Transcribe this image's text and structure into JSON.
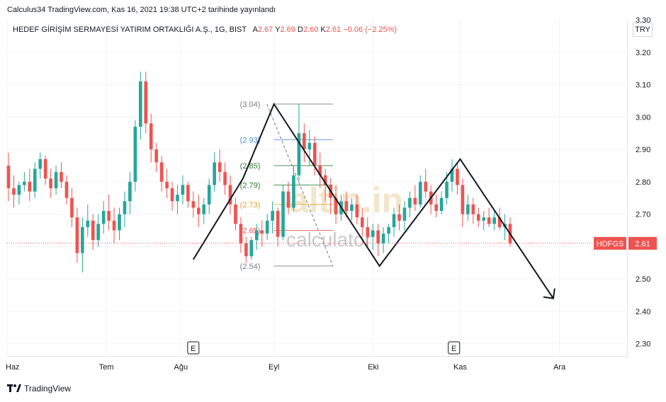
{
  "header": {
    "published": "Calculus34 TradingView.com, Kas 16, 2021 19:38 UTC+2 tarihinde yayınlandı"
  },
  "legend": {
    "symbol": "HEDEF GİRİŞİM SERMAYESİ YATIRIM ORTAKLIĞI A.Ş., 1G, BIST",
    "open_label": "A",
    "open_value": "2.67",
    "high_label": "Y",
    "high_value": "2.69",
    "low_label": "D",
    "low_value": "2.60",
    "close_label": "K",
    "close_value": "2.61",
    "change": "−0.06 (−2.25%)"
  },
  "currency": "TRY",
  "ticker_badge": {
    "name": "HDFGS",
    "price": "2.61"
  },
  "watermark": {
    "brand": "altin.in",
    "sub": "calculator"
  },
  "footer": {
    "brand": "TradingView"
  },
  "colors": {
    "up": "#26a69a",
    "down": "#ef5350",
    "pattern": "#131722",
    "fib_gray": "#787b86",
    "fib_blue": "#4a90d9",
    "fib_green": "#2e7d32"
  },
  "chart_data": {
    "type": "candlestick",
    "y_ticks": [
      "3.30",
      "3.20",
      "3.10",
      "3.00",
      "2.90",
      "2.80",
      "2.70",
      "2.60",
      "2.50",
      "2.40",
      "2.30"
    ],
    "x_ticks": [
      "Haz",
      "Tem",
      "Ağu",
      "Eyl",
      "Eki",
      "Kas",
      "Ara"
    ],
    "ylim": [
      2.26,
      3.3
    ],
    "last_price": 2.61,
    "candles": [
      [
        2.85,
        2.89,
        2.74,
        2.78
      ],
      [
        2.78,
        2.82,
        2.72,
        2.76
      ],
      [
        2.76,
        2.8,
        2.73,
        2.79
      ],
      [
        2.79,
        2.83,
        2.77,
        2.8
      ],
      [
        2.8,
        2.84,
        2.74,
        2.77
      ],
      [
        2.77,
        2.86,
        2.75,
        2.84
      ],
      [
        2.84,
        2.89,
        2.81,
        2.87
      ],
      [
        2.87,
        2.88,
        2.79,
        2.81
      ],
      [
        2.81,
        2.84,
        2.75,
        2.78
      ],
      [
        2.78,
        2.85,
        2.76,
        2.83
      ],
      [
        2.83,
        2.86,
        2.78,
        2.8
      ],
      [
        2.8,
        2.82,
        2.73,
        2.75
      ],
      [
        2.75,
        2.78,
        2.66,
        2.69
      ],
      [
        2.69,
        2.72,
        2.55,
        2.58
      ],
      [
        2.58,
        2.69,
        2.52,
        2.66
      ],
      [
        2.66,
        2.73,
        2.63,
        2.68
      ],
      [
        2.68,
        2.7,
        2.59,
        2.62
      ],
      [
        2.62,
        2.7,
        2.6,
        2.67
      ],
      [
        2.67,
        2.74,
        2.64,
        2.71
      ],
      [
        2.71,
        2.76,
        2.65,
        2.68
      ],
      [
        2.68,
        2.72,
        2.61,
        2.65
      ],
      [
        2.65,
        2.72,
        2.62,
        2.7
      ],
      [
        2.7,
        2.77,
        2.66,
        2.74
      ],
      [
        2.74,
        2.83,
        2.7,
        2.8
      ],
      [
        2.8,
        2.99,
        2.77,
        2.97
      ],
      [
        2.97,
        3.14,
        2.93,
        3.11
      ],
      [
        3.11,
        3.14,
        2.95,
        2.98
      ],
      [
        2.98,
        3.01,
        2.86,
        2.9
      ],
      [
        2.9,
        2.92,
        2.83,
        2.86
      ],
      [
        2.86,
        2.88,
        2.77,
        2.8
      ],
      [
        2.8,
        2.84,
        2.75,
        2.78
      ],
      [
        2.78,
        2.8,
        2.71,
        2.74
      ],
      [
        2.74,
        2.79,
        2.7,
        2.76
      ],
      [
        2.76,
        2.82,
        2.73,
        2.79
      ],
      [
        2.79,
        2.8,
        2.72,
        2.74
      ],
      [
        2.74,
        2.77,
        2.69,
        2.72
      ],
      [
        2.72,
        2.76,
        2.66,
        2.7
      ],
      [
        2.7,
        2.75,
        2.67,
        2.73
      ],
      [
        2.73,
        2.81,
        2.7,
        2.79
      ],
      [
        2.79,
        2.89,
        2.77,
        2.86
      ],
      [
        2.86,
        2.9,
        2.8,
        2.83
      ],
      [
        2.83,
        2.86,
        2.76,
        2.79
      ],
      [
        2.79,
        2.82,
        2.7,
        2.73
      ],
      [
        2.73,
        2.75,
        2.65,
        2.67
      ],
      [
        2.67,
        2.69,
        2.58,
        2.61
      ],
      [
        2.61,
        2.63,
        2.55,
        2.57
      ],
      [
        2.57,
        2.63,
        2.56,
        2.62
      ],
      [
        2.62,
        2.67,
        2.59,
        2.65
      ],
      [
        2.65,
        2.68,
        2.6,
        2.64
      ],
      [
        2.64,
        2.7,
        2.62,
        2.68
      ],
      [
        2.68,
        2.74,
        2.64,
        2.71
      ],
      [
        2.71,
        2.72,
        2.6,
        2.63
      ],
      [
        2.63,
        2.79,
        2.62,
        2.77
      ],
      [
        2.77,
        2.8,
        2.7,
        2.72
      ],
      [
        2.72,
        2.85,
        2.71,
        2.82
      ],
      [
        2.82,
        3.04,
        2.8,
        2.95
      ],
      [
        2.95,
        2.98,
        2.86,
        2.9
      ],
      [
        2.9,
        2.96,
        2.85,
        2.92
      ],
      [
        2.92,
        2.94,
        2.82,
        2.85
      ],
      [
        2.85,
        2.89,
        2.78,
        2.82
      ],
      [
        2.82,
        2.84,
        2.74,
        2.79
      ],
      [
        2.79,
        2.81,
        2.7,
        2.75
      ],
      [
        2.75,
        2.79,
        2.67,
        2.7
      ],
      [
        2.7,
        2.76,
        2.68,
        2.74
      ],
      [
        2.74,
        2.77,
        2.69,
        2.71
      ],
      [
        2.71,
        2.75,
        2.68,
        2.73
      ],
      [
        2.73,
        2.76,
        2.67,
        2.69
      ],
      [
        2.69,
        2.72,
        2.63,
        2.66
      ],
      [
        2.66,
        2.69,
        2.6,
        2.63
      ],
      [
        2.63,
        2.67,
        2.59,
        2.65
      ],
      [
        2.65,
        2.67,
        2.57,
        2.61
      ],
      [
        2.61,
        2.66,
        2.58,
        2.64
      ],
      [
        2.64,
        2.67,
        2.61,
        2.66
      ],
      [
        2.66,
        2.72,
        2.63,
        2.7
      ],
      [
        2.7,
        2.73,
        2.65,
        2.68
      ],
      [
        2.68,
        2.74,
        2.65,
        2.72
      ],
      [
        2.72,
        2.77,
        2.69,
        2.75
      ],
      [
        2.75,
        2.79,
        2.71,
        2.73
      ],
      [
        2.73,
        2.82,
        2.72,
        2.8
      ],
      [
        2.8,
        2.84,
        2.75,
        2.77
      ],
      [
        2.77,
        2.79,
        2.7,
        2.73
      ],
      [
        2.73,
        2.76,
        2.69,
        2.71
      ],
      [
        2.71,
        2.77,
        2.7,
        2.75
      ],
      [
        2.75,
        2.83,
        2.73,
        2.8
      ],
      [
        2.8,
        2.87,
        2.77,
        2.84
      ],
      [
        2.84,
        2.86,
        2.76,
        2.79
      ],
      [
        2.79,
        2.81,
        2.66,
        2.7
      ],
      [
        2.7,
        2.76,
        2.68,
        2.73
      ],
      [
        2.73,
        2.75,
        2.67,
        2.7
      ],
      [
        2.7,
        2.72,
        2.66,
        2.68
      ],
      [
        2.68,
        2.71,
        2.65,
        2.69
      ],
      [
        2.69,
        2.72,
        2.66,
        2.67
      ],
      [
        2.67,
        2.71,
        2.65,
        2.69
      ],
      [
        2.69,
        2.72,
        2.65,
        2.66
      ],
      [
        2.66,
        2.7,
        2.62,
        2.67
      ],
      [
        2.67,
        2.69,
        2.6,
        2.61
      ]
    ],
    "fib_levels": [
      {
        "label": "(3.04)",
        "price": 3.04,
        "color": "#787b86"
      },
      {
        "label": "(2.93)",
        "price": 2.93,
        "color": "#4a90d9"
      },
      {
        "label": "(2.85)",
        "price": 2.85,
        "color": "#2e7d32"
      },
      {
        "label": "(2.79)",
        "price": 2.79,
        "color": "#2e7d32"
      },
      {
        "label": "(2.73)",
        "price": 2.73,
        "color": "#e0a030"
      },
      {
        "label": "(2.65)",
        "price": 2.65,
        "color": "#ef5350"
      },
      {
        "label": "(2.54)",
        "price": 2.54,
        "color": "#787b86"
      }
    ],
    "pattern_points": [
      [
        2.56,
        0.3
      ],
      [
        2.81,
        0.38
      ],
      [
        3.04,
        0.43
      ],
      [
        2.54,
        0.6
      ],
      [
        2.87,
        0.73
      ],
      [
        2.44,
        0.88
      ]
    ],
    "event_markers": [
      "E",
      "E"
    ]
  }
}
